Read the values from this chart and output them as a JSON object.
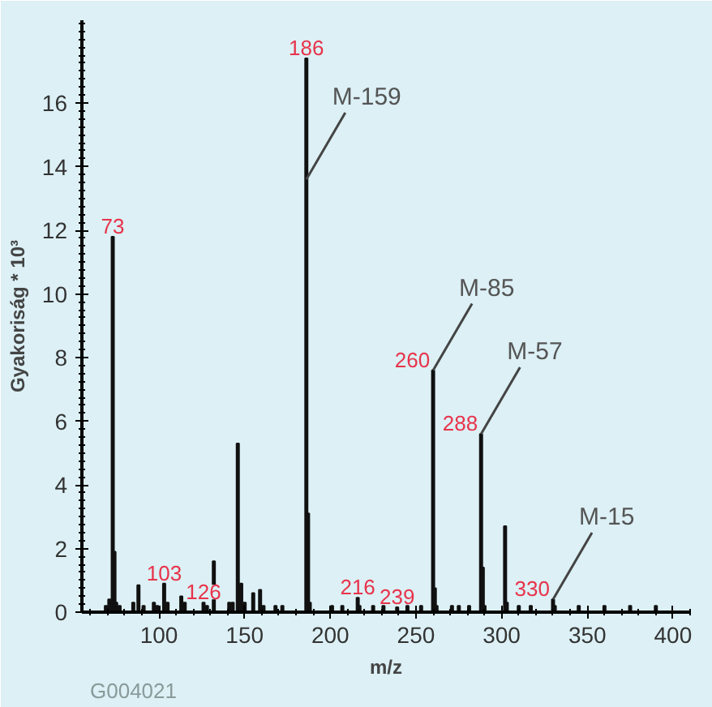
{
  "chart_data": {
    "type": "bar",
    "xlabel": "m/z",
    "ylabel": "Gyakoriság * 10³",
    "x": [
      69,
      71,
      73,
      74,
      75,
      77,
      85,
      88,
      91,
      97,
      99,
      103,
      105,
      113,
      115,
      126,
      128,
      132,
      141,
      143,
      146,
      148,
      150,
      155,
      159,
      161,
      168,
      172,
      186,
      187,
      188,
      201,
      207,
      216,
      217,
      225,
      231,
      239,
      245,
      253,
      260,
      261,
      262,
      271,
      275,
      281,
      288,
      289,
      290,
      302,
      303,
      310,
      317,
      330,
      331,
      345,
      360,
      375,
      390
    ],
    "values": [
      0.2,
      0.4,
      11.8,
      1.9,
      0.3,
      0.2,
      0.3,
      0.85,
      0.2,
      0.3,
      0.2,
      0.9,
      0.3,
      0.5,
      0.3,
      0.3,
      0.2,
      1.6,
      0.3,
      0.3,
      5.3,
      0.9,
      0.3,
      0.6,
      0.7,
      0.2,
      0.2,
      0.2,
      17.4,
      3.1,
      0.3,
      0.2,
      0.2,
      0.45,
      0.2,
      0.2,
      0.2,
      0.15,
      0.2,
      0.2,
      7.6,
      0.75,
      0.2,
      0.2,
      0.2,
      0.2,
      5.6,
      1.4,
      0.2,
      2.7,
      0.3,
      0.2,
      0.2,
      0.4,
      0.2,
      0.2,
      0.2,
      0.2,
      0.2
    ],
    "color": "#111111",
    "xlim": [
      55,
      410
    ],
    "xticks": [
      100,
      150,
      200,
      250,
      300,
      350,
      400
    ],
    "ylim": [
      0,
      18.6
    ],
    "yticks": [
      0,
      2,
      4,
      6,
      8,
      10,
      12,
      14,
      16
    ],
    "annotations": [
      {
        "text": "73",
        "x": 73,
        "y": 11.8
      },
      {
        "text": "103",
        "x": 103,
        "y": 0.9
      },
      {
        "text": "126",
        "x": 126,
        "y": 0.3
      },
      {
        "text": "186",
        "x": 186,
        "y": 17.4
      },
      {
        "text": "216",
        "x": 216,
        "y": 0.45
      },
      {
        "text": "239",
        "x": 239,
        "y": 0.15
      },
      {
        "text": "260",
        "x": 260,
        "y": 7.6
      },
      {
        "text": "288",
        "x": 288,
        "y": 5.6
      },
      {
        "text": "330",
        "x": 330,
        "y": 0.4
      },
      {
        "text": "M-159",
        "x": 186,
        "y": 13.6
      },
      {
        "text": "M-85",
        "x": 260,
        "y": 7.6
      },
      {
        "text": "M-57",
        "x": 288,
        "y": 5.6
      },
      {
        "text": "M-15",
        "x": 330,
        "y": 0.4
      },
      "G004021"
    ]
  }
}
